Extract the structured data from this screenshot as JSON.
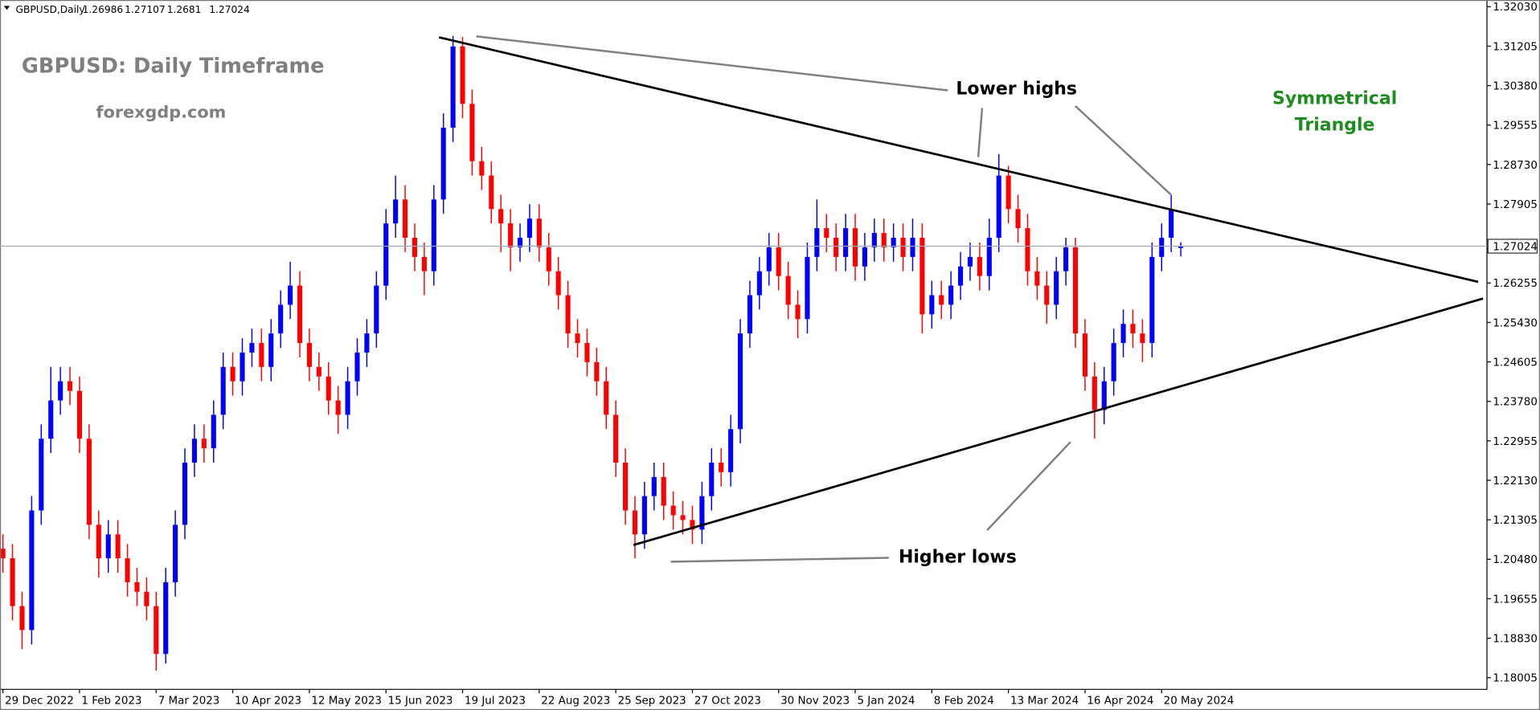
{
  "chart_data": {
    "type": "candlestick",
    "symbol": "GBPUSD,Daily",
    "title": "GBPUSD: Daily Timeframe",
    "subtitle": "forexgdp.com",
    "annotations": {
      "lower_highs": "Lower highs",
      "higher_lows": "Higher lows",
      "pattern": [
        "Symmetrical",
        "Triangle"
      ]
    },
    "up_color": "#0000ff",
    "down_color": "#ff0000",
    "ylim": [
      1.1776,
      1.3217
    ],
    "yticks": [
      {
        "value": 1.3203,
        "label": "1.32030"
      },
      {
        "value": 1.31205,
        "label": "1.31205"
      },
      {
        "value": 1.3038,
        "label": "1.30380"
      },
      {
        "value": 1.29555,
        "label": "1.29555"
      },
      {
        "value": 1.2873,
        "label": "1.28730"
      },
      {
        "value": 1.27905,
        "label": "1.27905"
      },
      {
        "value": 1.26255,
        "label": "1.26255"
      },
      {
        "value": 1.2543,
        "label": "1.25430"
      },
      {
        "value": 1.24605,
        "label": "1.24605"
      },
      {
        "value": 1.2378,
        "label": "1.23780"
      },
      {
        "value": 1.22955,
        "label": "1.22955"
      },
      {
        "value": 1.2213,
        "label": "1.22130"
      },
      {
        "value": 1.21305,
        "label": "1.21305"
      },
      {
        "value": 1.2048,
        "label": "1.20480"
      },
      {
        "value": 1.19655,
        "label": "1.19655"
      },
      {
        "value": 1.1883,
        "label": "1.18830"
      },
      {
        "value": 1.18005,
        "label": "1.18005"
      }
    ],
    "grid": false,
    "categories": [
      "29 Dec 2022",
      null,
      null,
      null,
      null,
      null,
      null,
      null,
      "1 Feb 2023",
      null,
      null,
      null,
      null,
      null,
      null,
      null,
      "7 Mar 2023",
      null,
      null,
      null,
      null,
      null,
      null,
      null,
      "10 Apr 2023",
      null,
      null,
      null,
      null,
      null,
      null,
      null,
      "12 May 2023",
      null,
      null,
      null,
      null,
      null,
      null,
      null,
      "15 Jun 2023",
      null,
      null,
      null,
      null,
      null,
      null,
      null,
      "19 Jul 2023",
      null,
      null,
      null,
      null,
      null,
      null,
      null,
      "22 Aug 2023",
      null,
      null,
      null,
      null,
      null,
      null,
      null,
      "25 Sep 2023",
      null,
      null,
      null,
      null,
      null,
      null,
      null,
      "27 Oct 2023",
      null,
      null,
      null,
      null,
      null,
      null,
      null,
      null,
      "30 Nov 2023",
      null,
      null,
      null,
      null,
      null,
      null,
      null,
      "5 Jan 2024",
      null,
      null,
      null,
      null,
      null,
      null,
      null,
      "8 Feb 2024",
      null,
      null,
      null,
      null,
      null,
      null,
      null,
      "13 Mar 2024",
      null,
      null,
      null,
      null,
      null,
      null,
      null,
      "16 Apr 2024",
      null,
      null,
      null,
      null,
      null,
      null,
      null,
      "20 May 2024",
      null,
      null
    ],
    "open": [
      1.207,
      1.205,
      1.195,
      1.19,
      1.215,
      1.23,
      1.238,
      1.242,
      1.24,
      1.23,
      1.212,
      1.205,
      1.21,
      1.205,
      1.2,
      1.198,
      1.195,
      1.185,
      1.2,
      1.212,
      1.225,
      1.23,
      1.228,
      1.235,
      1.245,
      1.242,
      1.248,
      1.25,
      1.245,
      1.252,
      1.258,
      1.262,
      1.25,
      1.245,
      1.243,
      1.238,
      1.235,
      1.242,
      1.248,
      1.252,
      1.262,
      1.275,
      1.28,
      1.272,
      1.268,
      1.265,
      1.28,
      1.295,
      1.312,
      1.3,
      1.288,
      1.285,
      1.278,
      1.275,
      1.27,
      1.272,
      1.276,
      1.27,
      1.265,
      1.26,
      1.252,
      1.25,
      1.246,
      1.242,
      1.235,
      1.225,
      1.215,
      1.21,
      1.218,
      1.222,
      1.216,
      1.214,
      1.213,
      1.211,
      1.218,
      1.225,
      1.223,
      1.232,
      1.252,
      1.26,
      1.265,
      1.27,
      1.264,
      1.258,
      1.255,
      1.268,
      1.274,
      1.272,
      1.268,
      1.274,
      1.266,
      1.27,
      1.273,
      1.27,
      1.272,
      1.268,
      1.272,
      1.256,
      1.26,
      1.258,
      1.262,
      1.266,
      1.268,
      1.264,
      1.272,
      1.285,
      1.278,
      1.274,
      1.265,
      1.262,
      1.258,
      1.265,
      1.27,
      1.252,
      1.243,
      1.236,
      1.242,
      1.25,
      1.254,
      1.252,
      1.25,
      1.268,
      1.272,
      1.26986
    ],
    "high": [
      1.21,
      1.208,
      1.198,
      1.218,
      1.233,
      1.245,
      1.245,
      1.245,
      1.243,
      1.233,
      1.215,
      1.213,
      1.213,
      1.208,
      1.203,
      1.201,
      1.198,
      1.203,
      1.215,
      1.228,
      1.233,
      1.233,
      1.238,
      1.248,
      1.248,
      1.251,
      1.253,
      1.253,
      1.255,
      1.261,
      1.267,
      1.265,
      1.253,
      1.248,
      1.246,
      1.241,
      1.245,
      1.251,
      1.255,
      1.265,
      1.278,
      1.285,
      1.283,
      1.275,
      1.271,
      1.283,
      1.298,
      1.3142,
      1.314,
      1.303,
      1.291,
      1.288,
      1.281,
      1.278,
      1.275,
      1.279,
      1.279,
      1.273,
      1.268,
      1.263,
      1.255,
      1.253,
      1.249,
      1.245,
      1.238,
      1.228,
      1.218,
      1.221,
      1.225,
      1.225,
      1.219,
      1.217,
      1.216,
      1.221,
      1.228,
      1.228,
      1.235,
      1.255,
      1.263,
      1.268,
      1.273,
      1.273,
      1.267,
      1.261,
      1.271,
      1.28,
      1.277,
      1.275,
      1.277,
      1.277,
      1.273,
      1.276,
      1.276,
      1.275,
      1.275,
      1.276,
      1.275,
      1.263,
      1.263,
      1.265,
      1.269,
      1.271,
      1.271,
      1.276,
      1.2895,
      1.287,
      1.281,
      1.277,
      1.268,
      1.265,
      1.268,
      1.272,
      1.272,
      1.255,
      1.246,
      1.245,
      1.253,
      1.257,
      1.257,
      1.255,
      1.271,
      1.275,
      1.281,
      1.27107
    ],
    "low": [
      1.202,
      1.192,
      1.186,
      1.187,
      1.212,
      1.227,
      1.235,
      1.237,
      1.227,
      1.209,
      1.201,
      1.202,
      1.202,
      1.197,
      1.195,
      1.192,
      1.1815,
      1.183,
      1.197,
      1.209,
      1.222,
      1.225,
      1.225,
      1.232,
      1.239,
      1.239,
      1.245,
      1.242,
      1.242,
      1.249,
      1.255,
      1.247,
      1.242,
      1.24,
      1.235,
      1.231,
      1.232,
      1.239,
      1.245,
      1.249,
      1.259,
      1.272,
      1.269,
      1.265,
      1.26,
      1.262,
      1.277,
      1.292,
      1.297,
      1.285,
      1.282,
      1.275,
      1.269,
      1.265,
      1.267,
      1.269,
      1.267,
      1.262,
      1.257,
      1.249,
      1.247,
      1.243,
      1.239,
      1.232,
      1.222,
      1.212,
      1.205,
      1.207,
      1.215,
      1.213,
      1.211,
      1.21,
      1.208,
      1.208,
      1.215,
      1.22,
      1.22,
      1.229,
      1.249,
      1.257,
      1.262,
      1.261,
      1.255,
      1.251,
      1.252,
      1.265,
      1.269,
      1.265,
      1.265,
      1.263,
      1.263,
      1.267,
      1.267,
      1.267,
      1.265,
      1.265,
      1.252,
      1.253,
      1.255,
      1.255,
      1.259,
      1.263,
      1.261,
      1.261,
      1.269,
      1.275,
      1.271,
      1.262,
      1.259,
      1.254,
      1.255,
      1.262,
      1.249,
      1.24,
      1.23,
      1.233,
      1.239,
      1.247,
      1.249,
      1.246,
      1.247,
      1.265,
      1.269,
      1.2681
    ],
    "close": [
      1.205,
      1.195,
      1.19,
      1.215,
      1.23,
      1.238,
      1.242,
      1.24,
      1.23,
      1.212,
      1.205,
      1.21,
      1.205,
      1.2,
      1.198,
      1.195,
      1.185,
      1.2,
      1.212,
      1.225,
      1.23,
      1.228,
      1.235,
      1.245,
      1.242,
      1.248,
      1.25,
      1.245,
      1.252,
      1.258,
      1.262,
      1.25,
      1.245,
      1.243,
      1.238,
      1.235,
      1.242,
      1.248,
      1.252,
      1.262,
      1.275,
      1.28,
      1.272,
      1.268,
      1.265,
      1.28,
      1.295,
      1.312,
      1.3,
      1.288,
      1.285,
      1.278,
      1.275,
      1.27,
      1.272,
      1.276,
      1.27,
      1.265,
      1.26,
      1.252,
      1.25,
      1.246,
      1.242,
      1.235,
      1.225,
      1.215,
      1.21,
      1.218,
      1.222,
      1.216,
      1.214,
      1.213,
      1.211,
      1.218,
      1.225,
      1.223,
      1.232,
      1.252,
      1.26,
      1.265,
      1.27,
      1.264,
      1.258,
      1.255,
      1.268,
      1.274,
      1.272,
      1.268,
      1.274,
      1.266,
      1.27,
      1.273,
      1.27,
      1.272,
      1.268,
      1.272,
      1.256,
      1.26,
      1.258,
      1.262,
      1.266,
      1.268,
      1.264,
      1.272,
      1.285,
      1.278,
      1.274,
      1.265,
      1.262,
      1.258,
      1.265,
      1.27,
      1.252,
      1.243,
      1.236,
      1.242,
      1.25,
      1.254,
      1.252,
      1.25,
      1.268,
      1.272,
      1.278,
      1.27024
    ]
  }
}
